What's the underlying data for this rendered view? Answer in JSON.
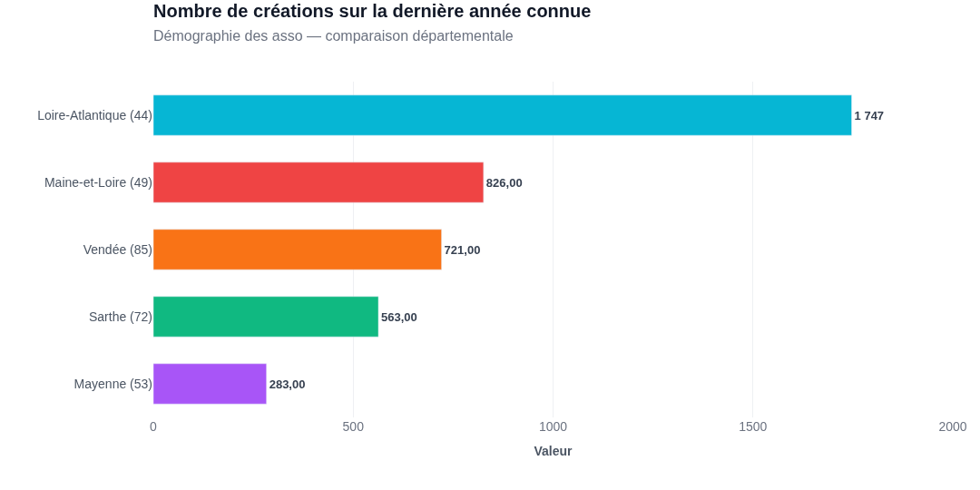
{
  "chart_data": {
    "type": "bar",
    "orientation": "horizontal",
    "title": "Nombre de créations sur la dernière année connue",
    "subtitle": "Démographie des asso — comparaison départementale",
    "xlabel": "Valeur",
    "categories": [
      "Loire-Atlantique (44)",
      "Maine-et-Loire (49)",
      "Vendée (85)",
      "Sarthe (72)",
      "Mayenne (53)"
    ],
    "values": [
      1747,
      826,
      721,
      563,
      283
    ],
    "colors": [
      "#06b6d4",
      "#ef4444",
      "#f97316",
      "#10b981",
      "#a855f7"
    ],
    "value_labels": [
      "1 747",
      "826,00",
      "721,00",
      "563,00",
      "283,00"
    ],
    "xlim": [
      0,
      2000
    ],
    "xticks": [
      0,
      500,
      1000,
      1500,
      2000
    ],
    "grid": "x"
  }
}
